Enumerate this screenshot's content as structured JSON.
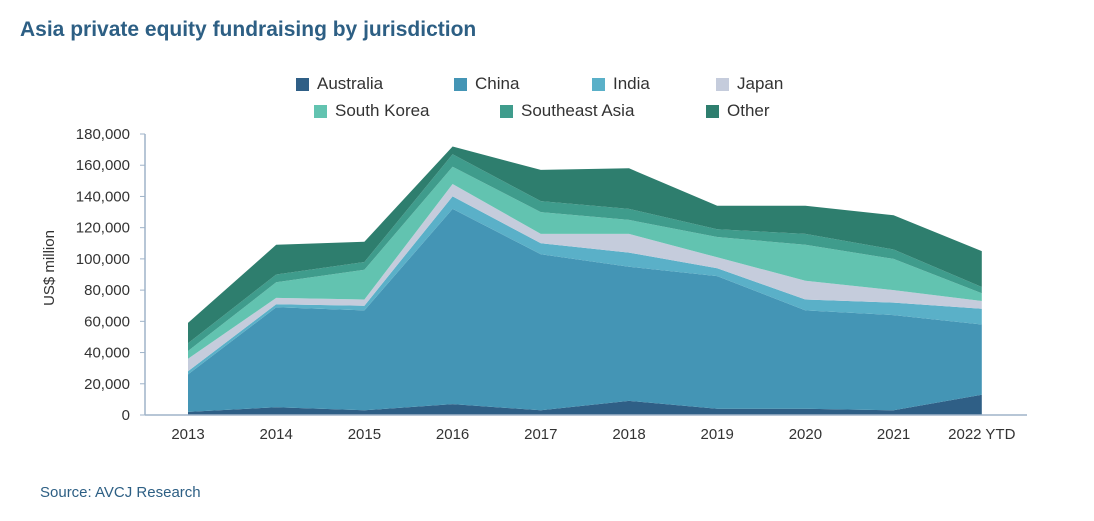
{
  "chart_data": {
    "type": "area",
    "stacked": true,
    "title": "Asia private equity fundraising by jurisdiction",
    "ylabel": "US$ million",
    "xlabel": "",
    "ylim": [
      0,
      180000
    ],
    "yticks": [
      0,
      20000,
      40000,
      60000,
      80000,
      100000,
      120000,
      140000,
      160000,
      180000
    ],
    "ytick_labels": [
      "0",
      "20,000",
      "40,000",
      "60,000",
      "80,000",
      "100,000",
      "120,000",
      "140,000",
      "160,000",
      "180,000"
    ],
    "categories": [
      "2013",
      "2014",
      "2015",
      "2016",
      "2017",
      "2018",
      "2019",
      "2020",
      "2021",
      "2022 YTD"
    ],
    "series": [
      {
        "name": "Australia",
        "color": "#2f5f86",
        "values": [
          2000,
          5000,
          3000,
          7000,
          3000,
          9000,
          4000,
          4000,
          3000,
          13000
        ]
      },
      {
        "name": "China",
        "color": "#4495b5",
        "values": [
          24000,
          64000,
          64000,
          125000,
          100000,
          86000,
          85000,
          63000,
          61000,
          45000
        ]
      },
      {
        "name": "India",
        "color": "#5ab0c8",
        "values": [
          2000,
          2000,
          3000,
          8000,
          7000,
          9000,
          5000,
          7000,
          8000,
          10000
        ]
      },
      {
        "name": "Japan",
        "color": "#c5ccdc",
        "values": [
          8000,
          4000,
          4000,
          8000,
          6000,
          12000,
          7000,
          12000,
          8000,
          5000
        ]
      },
      {
        "name": "South Korea",
        "color": "#62c3b0",
        "values": [
          5000,
          10000,
          19000,
          11000,
          14000,
          9000,
          13000,
          23000,
          20000,
          5000
        ]
      },
      {
        "name": "Southeast Asia",
        "color": "#3f9c8c",
        "values": [
          5000,
          5000,
          5000,
          8000,
          7000,
          7000,
          5000,
          7000,
          6000,
          4000
        ]
      },
      {
        "name": "Other",
        "color": "#2e7e6e",
        "values": [
          13000,
          19000,
          13000,
          5000,
          20000,
          26000,
          15000,
          18000,
          22000,
          23000
        ]
      }
    ]
  },
  "source": "Source: AVCJ Research"
}
